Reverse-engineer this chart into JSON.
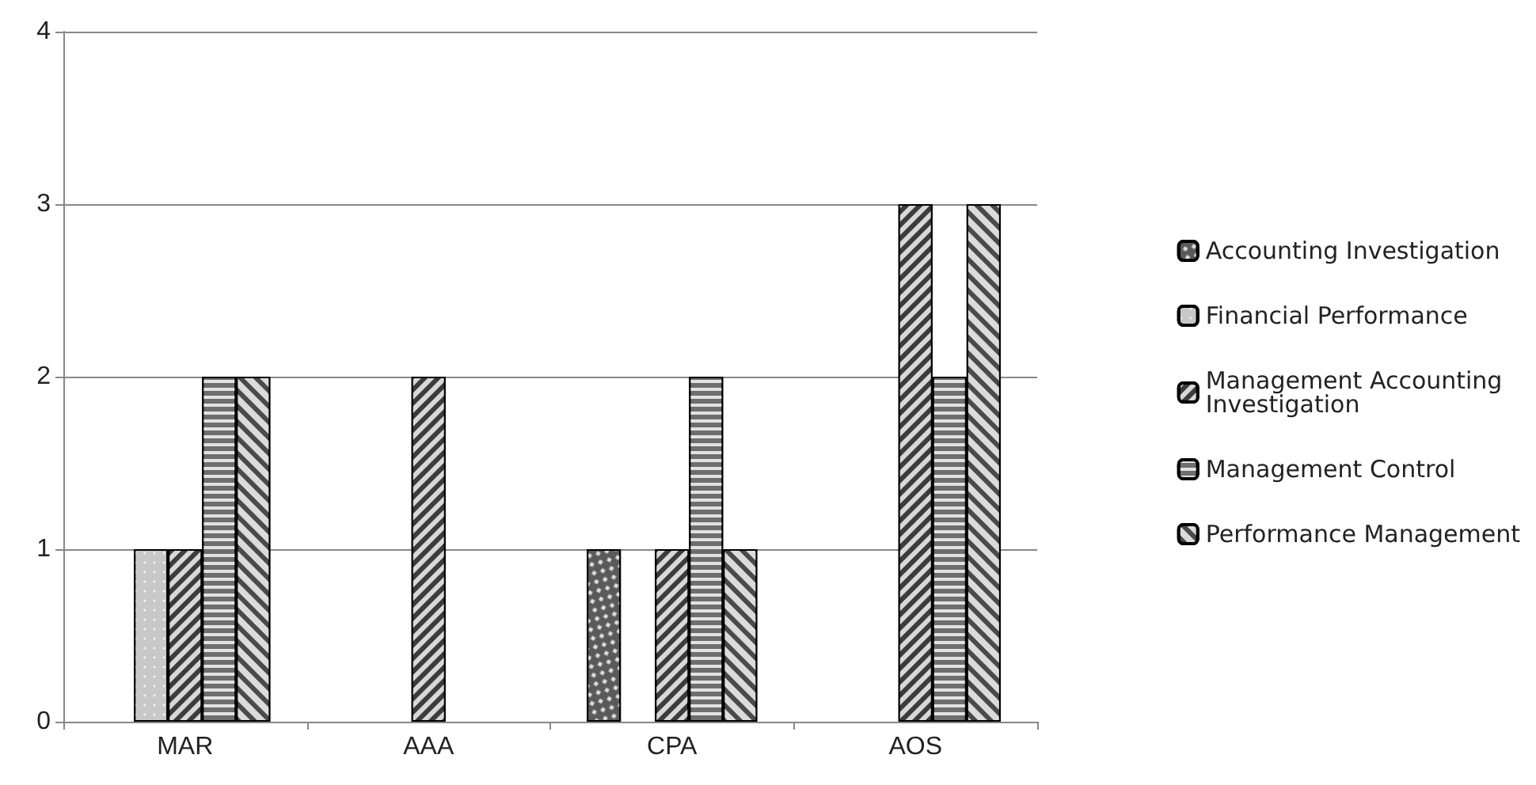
{
  "chart_data": {
    "type": "bar",
    "categories": [
      "MAR",
      "AAA",
      "CPA",
      "AOS"
    ],
    "series": [
      {
        "name": "Accounting Investigation",
        "color": "#5a5a5a",
        "values": [
          null,
          null,
          1,
          null
        ]
      },
      {
        "name": "Financial Performance",
        "color": "#c8c8c8",
        "values": [
          1,
          null,
          null,
          null
        ]
      },
      {
        "name": "Management Accounting Investigation",
        "color": "#3c3c3c",
        "values": [
          1,
          2,
          1,
          3
        ]
      },
      {
        "name": "Management Control",
        "color": "#6e6e6e",
        "values": [
          2,
          null,
          2,
          2
        ]
      },
      {
        "name": "Performance Management",
        "color": "#4a4a4a",
        "values": [
          2,
          null,
          1,
          3
        ]
      }
    ],
    "ylim": [
      0,
      4
    ],
    "yticks": [
      0,
      1,
      2,
      3,
      4
    ],
    "grid": "y",
    "legend": "right"
  }
}
